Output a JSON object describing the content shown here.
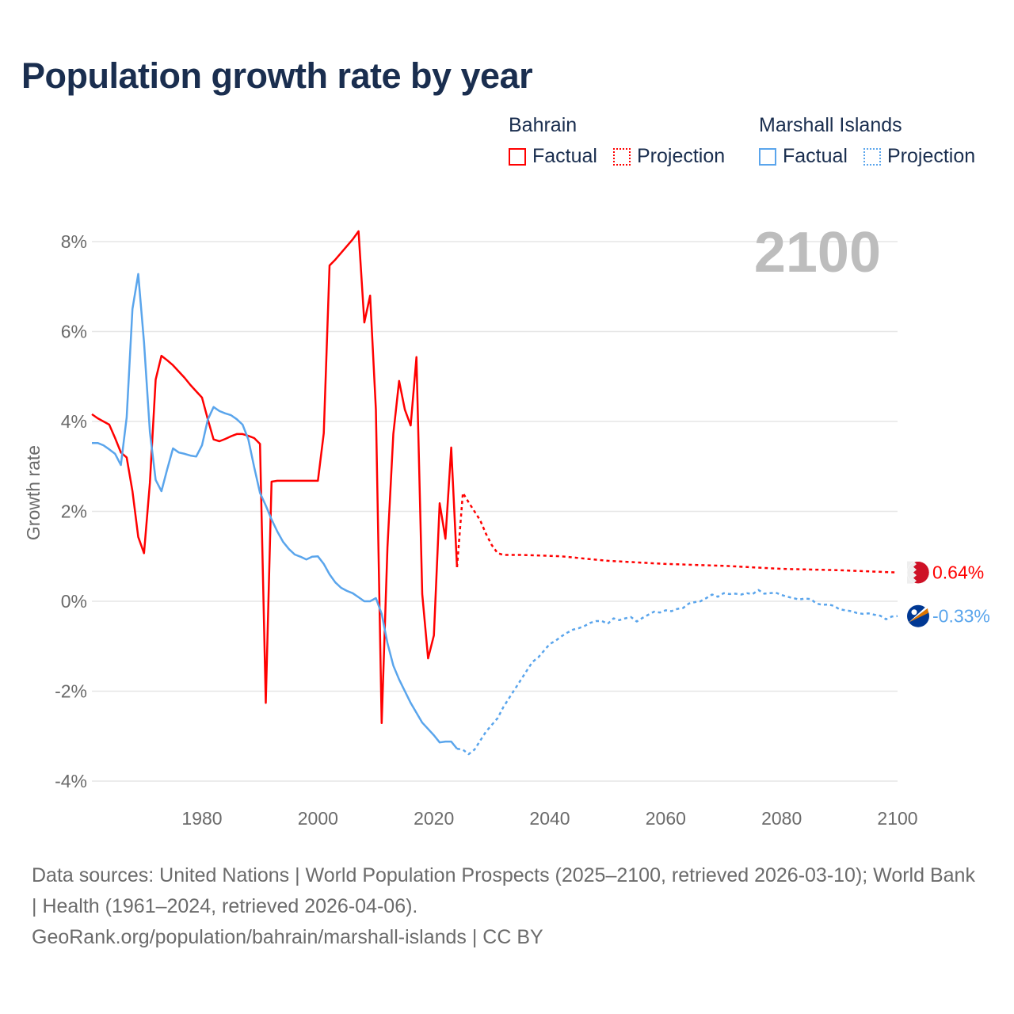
{
  "title": "Population growth rate by year",
  "legend": {
    "groups": [
      {
        "name": "Bahrain",
        "color": "#ff0000",
        "items": [
          "Factual",
          "Projection"
        ]
      },
      {
        "name": "Marshall Islands",
        "color": "#5aa5ec",
        "items": [
          "Factual",
          "Projection"
        ]
      }
    ]
  },
  "year_label": "2100",
  "footer": {
    "sources": "Data sources: United Nations | World Population Prospects (2025–2100, retrieved 2026-03-10); World Bank | Health (1961–2024, retrieved 2026-04-06).",
    "credit": "GeoRank.org/population/bahrain/marshall-islands | CC BY"
  },
  "chart_data": {
    "type": "line",
    "title": "Population growth rate by year",
    "xlabel": "",
    "ylabel": "Growth rate",
    "xlim": [
      1961,
      2100
    ],
    "ylim": [
      -4,
      8
    ],
    "x_ticks": [
      1980,
      2000,
      2020,
      2040,
      2060,
      2080,
      2100
    ],
    "y_ticks": [
      -4,
      -2,
      0,
      2,
      4,
      6,
      8
    ],
    "y_tick_labels": [
      "-4%",
      "-2%",
      "0%",
      "2%",
      "4%",
      "6%",
      "8%"
    ],
    "grid": true,
    "legend_position": "top-right",
    "series": [
      {
        "name": "Bahrain",
        "part": "Factual",
        "color": "#ff0000",
        "style": "solid",
        "x_start": 1961,
        "values": [
          4.16,
          4.07,
          4.0,
          3.93,
          3.63,
          3.31,
          3.2,
          2.45,
          1.43,
          1.07,
          2.63,
          4.93,
          5.46,
          5.36,
          5.25,
          5.11,
          4.97,
          4.81,
          4.67,
          4.53,
          4.05,
          3.6,
          3.56,
          3.61,
          3.67,
          3.72,
          3.72,
          3.68,
          3.63,
          3.5,
          -2.26,
          2.66,
          2.68,
          2.68,
          2.68,
          2.68,
          2.68,
          2.68,
          2.68,
          2.68,
          3.74,
          7.47,
          7.6,
          7.75,
          7.9,
          8.05,
          8.23,
          6.2,
          6.8,
          4.26,
          -2.71,
          1.2,
          3.72,
          4.9,
          4.26,
          3.91,
          5.43,
          0.16,
          -1.27,
          -0.76,
          2.18,
          1.39,
          3.42,
          0.76
        ]
      },
      {
        "name": "Bahrain",
        "part": "Projection",
        "color": "#ff0000",
        "style": "dotted",
        "x": [
          2024,
          2025,
          2026,
          2027,
          2028,
          2029,
          2030,
          2031,
          2032,
          2035,
          2040,
          2042,
          2050,
          2060,
          2070,
          2080,
          2090,
          2100
        ],
        "values": [
          0.76,
          2.41,
          2.2,
          2.0,
          1.8,
          1.5,
          1.25,
          1.07,
          1.03,
          1.03,
          1.01,
          1.0,
          0.9,
          0.83,
          0.79,
          0.72,
          0.69,
          0.64
        ],
        "end_label": "0.64%"
      },
      {
        "name": "Marshall Islands",
        "part": "Factual",
        "color": "#5aa5ec",
        "style": "solid",
        "x_start": 1961,
        "values": [
          3.52,
          3.52,
          3.47,
          3.38,
          3.28,
          3.03,
          4.09,
          6.5,
          7.28,
          5.76,
          3.77,
          2.7,
          2.45,
          2.94,
          3.4,
          3.31,
          3.28,
          3.24,
          3.22,
          3.47,
          4.04,
          4.32,
          4.23,
          4.18,
          4.14,
          4.05,
          3.93,
          3.6,
          2.98,
          2.41,
          2.13,
          1.82,
          1.55,
          1.32,
          1.16,
          1.04,
          0.99,
          0.93,
          0.99,
          1.0,
          0.83,
          0.6,
          0.42,
          0.3,
          0.23,
          0.18,
          0.09,
          0.0,
          0.0,
          0.07,
          -0.28,
          -0.93,
          -1.43,
          -1.74,
          -2.0,
          -2.26,
          -2.48,
          -2.7,
          -2.84,
          -2.98,
          -3.14,
          -3.12,
          -3.12,
          -3.28
        ]
      },
      {
        "name": "Marshall Islands",
        "part": "Projection",
        "color": "#5aa5ec",
        "style": "dotted",
        "x_start": 2024,
        "values": [
          -3.28,
          -3.3,
          -3.4,
          -3.3,
          -3.1,
          -2.9,
          -2.75,
          -2.6,
          -2.35,
          -2.15,
          -1.95,
          -1.75,
          -1.55,
          -1.35,
          -1.25,
          -1.1,
          -0.95,
          -0.88,
          -0.78,
          -0.7,
          -0.63,
          -0.6,
          -0.55,
          -0.48,
          -0.44,
          -0.44,
          -0.5,
          -0.38,
          -0.42,
          -0.38,
          -0.35,
          -0.45,
          -0.37,
          -0.3,
          -0.23,
          -0.25,
          -0.2,
          -0.22,
          -0.17,
          -0.15,
          -0.05,
          -0.02,
          0.0,
          0.07,
          0.15,
          0.1,
          0.18,
          0.16,
          0.17,
          0.15,
          0.18,
          0.16,
          0.25,
          0.17,
          0.18,
          0.19,
          0.14,
          0.1,
          0.07,
          0.04,
          0.06,
          0.05,
          -0.05,
          -0.08,
          -0.07,
          -0.1,
          -0.18,
          -0.2,
          -0.22,
          -0.26,
          -0.28,
          -0.27,
          -0.3,
          -0.32,
          -0.4,
          -0.34,
          -0.33
        ],
        "end_label": "-0.33%"
      }
    ]
  }
}
